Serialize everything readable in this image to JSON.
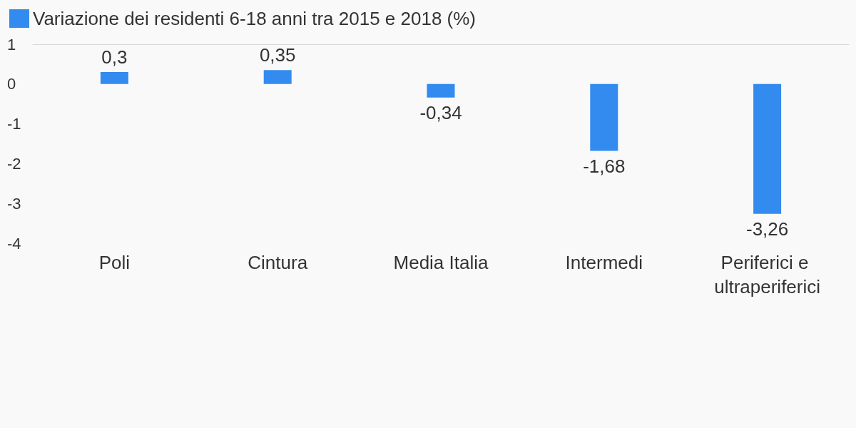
{
  "chart_data": {
    "type": "bar",
    "categories": [
      "Poli",
      "Cintura",
      "Media Italia",
      "Intermedi",
      "Periferici e ultraperiferici"
    ],
    "series": [
      {
        "name": "Variazione dei residenti 6-18 anni tra 2015 e 2018 (%)",
        "color": "#338bef",
        "values": [
          0.3,
          0.35,
          -0.34,
          -1.68,
          -3.26
        ],
        "value_labels": [
          "0,3",
          "0,35",
          "-0,34",
          "-1,68",
          "-3,26"
        ]
      }
    ],
    "ylim": [
      -4,
      1
    ],
    "yticks": [
      1,
      0,
      -1,
      -2,
      -3,
      -4
    ],
    "grid": false,
    "legend": "top left"
  }
}
